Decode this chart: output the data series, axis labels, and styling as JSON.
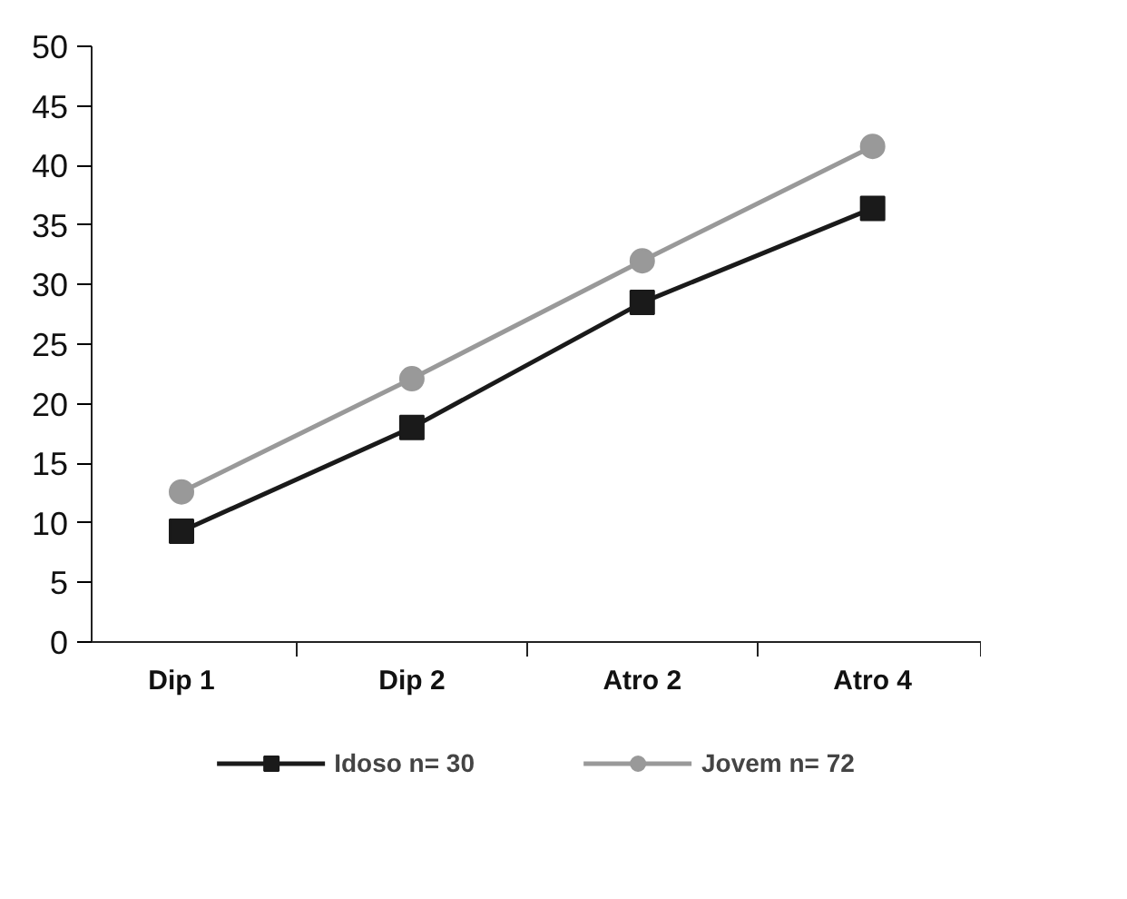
{
  "chart_data": {
    "type": "line",
    "categories": [
      "Dip 1",
      "Dip 2",
      "Atro 2",
      "Atro 4"
    ],
    "series": [
      {
        "name": "Idoso n= 30",
        "color": "#1a1a1a",
        "marker": "square",
        "values": [
          9.3,
          18.0,
          28.5,
          36.4
        ]
      },
      {
        "name": "Jovem n= 72",
        "color": "#999999",
        "marker": "circle",
        "values": [
          12.6,
          22.1,
          32.0,
          41.6
        ]
      }
    ],
    "ylim": [
      0,
      50
    ],
    "yticks": [
      0,
      5,
      10,
      15,
      20,
      25,
      30,
      35,
      40,
      45,
      50
    ],
    "grid": false,
    "legend": "bottom",
    "line_style": "solid"
  }
}
